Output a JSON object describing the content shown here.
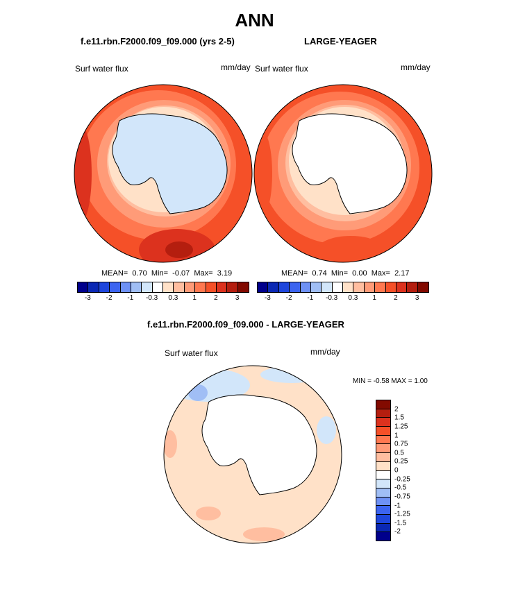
{
  "figure": {
    "season": "ANN",
    "left_title": "f.e11.rbn.F2000.f09_f09.000 (yrs 2-5)",
    "right_title": "LARGE-YEAGER",
    "diff_title": "f.e11.rbn.F2000.f09_f09.000 - LARGE-YEAGER"
  },
  "panels": {
    "left": {
      "variable": "Surf water flux",
      "units": "mm/day",
      "stats": {
        "mean_label": "MEAN=",
        "mean": "0.70",
        "min_label": "Min=",
        "min": "-0.07",
        "max_label": "Max=",
        "max": "3.19"
      }
    },
    "right": {
      "variable": "Surf water flux",
      "units": "mm/day",
      "stats": {
        "mean_label": "MEAN=",
        "mean": "0.74",
        "min_label": "Min=",
        "min": "0.00",
        "max_label": "Max=",
        "max": "2.17"
      }
    },
    "diff": {
      "variable": "Surf water flux",
      "units": "mm/day",
      "minmax": "MIN =  -0.58 MAX =   1.00"
    }
  },
  "colorbars": {
    "horizontal": {
      "colors": [
        "#00008c",
        "#0a28b4",
        "#1e46dc",
        "#3c64f0",
        "#6e91f5",
        "#a0bef5",
        "#d2e6fa",
        "#ffffff",
        "#ffe1c8",
        "#ffbea0",
        "#ff9b78",
        "#ff7850",
        "#f55028",
        "#dc321e",
        "#b41e0f",
        "#820a00"
      ],
      "tick_labels": [
        "-3",
        "-2",
        "-1",
        "-0.3",
        "0.3",
        "1",
        "2",
        "3"
      ]
    },
    "vertical": {
      "colors_top_to_bottom": [
        "#820a00",
        "#b41e0f",
        "#dc321e",
        "#f55028",
        "#ff7850",
        "#ff9b78",
        "#ffbea0",
        "#ffe1c8",
        "#ffffff",
        "#d2e6fa",
        "#a0bef5",
        "#6e91f5",
        "#3c64f0",
        "#1e46dc",
        "#0a28b4",
        "#00008c"
      ],
      "tick_labels": [
        "2",
        "1.5",
        "1.25",
        "1",
        "0.75",
        "0.5",
        "0.25",
        "0",
        "-0.25",
        "-0.5",
        "-0.75",
        "-1",
        "-1.25",
        "-1.5",
        "-2"
      ]
    }
  },
  "chart_data": [
    {
      "type": "heatmap",
      "title": "f.e11.rbn.F2000.f09_f09.000 (yrs 2-5)",
      "projection": "south polar stereographic",
      "variable": "Surf water flux",
      "units": "mm/day",
      "mean": 0.7,
      "min": -0.07,
      "max": 3.19,
      "levels": [
        -3,
        -2,
        -1,
        -0.3,
        0.3,
        1,
        2,
        3
      ]
    },
    {
      "type": "heatmap",
      "title": "LARGE-YEAGER",
      "projection": "south polar stereographic",
      "variable": "Surf water flux",
      "units": "mm/day",
      "mean": 0.74,
      "min": 0.0,
      "max": 2.17,
      "levels": [
        -3,
        -2,
        -1,
        -0.3,
        0.3,
        1,
        2,
        3
      ]
    },
    {
      "type": "heatmap",
      "title": "f.e11.rbn.F2000.f09_f09.000 - LARGE-YEAGER",
      "projection": "south polar stereographic",
      "variable": "Surf water flux",
      "units": "mm/day",
      "min": -0.58,
      "max": 1.0,
      "levels": [
        -2,
        -1.5,
        -1.25,
        -1,
        -0.75,
        -0.5,
        -0.25,
        0,
        0.25,
        0.5,
        0.75,
        1,
        1.25,
        1.5,
        2
      ]
    }
  ]
}
